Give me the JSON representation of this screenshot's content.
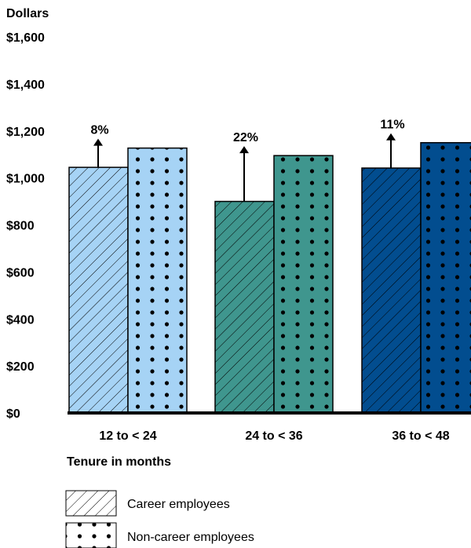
{
  "chart_data": {
    "type": "bar",
    "ylabel": "Dollars",
    "xlabel": "Tenure in months",
    "ylim": [
      0,
      1600
    ],
    "yticks": [
      0,
      200,
      400,
      600,
      800,
      1000,
      1200,
      1400,
      1600
    ],
    "ytick_labels": [
      "$0",
      "$200",
      "$400",
      "$600",
      "$800",
      "$1,000",
      "$1,200",
      "$1,400",
      "$1,600"
    ],
    "categories": [
      "12 to < 24",
      "24 to < 36",
      "36 to < 48"
    ],
    "series": [
      {
        "name": "Career employees",
        "values": [
          1045,
          900,
          1042
        ],
        "pattern": "hatch"
      },
      {
        "name": "Non-career employees",
        "values": [
          1127,
          1095,
          1150
        ],
        "pattern": "dots"
      }
    ],
    "colors": [
      "#a6d3f5",
      "#3f968e",
      "#024d8f"
    ],
    "annotations": [
      "8%",
      "22%",
      "11%"
    ],
    "grid": false,
    "legend": "bottom-left"
  }
}
